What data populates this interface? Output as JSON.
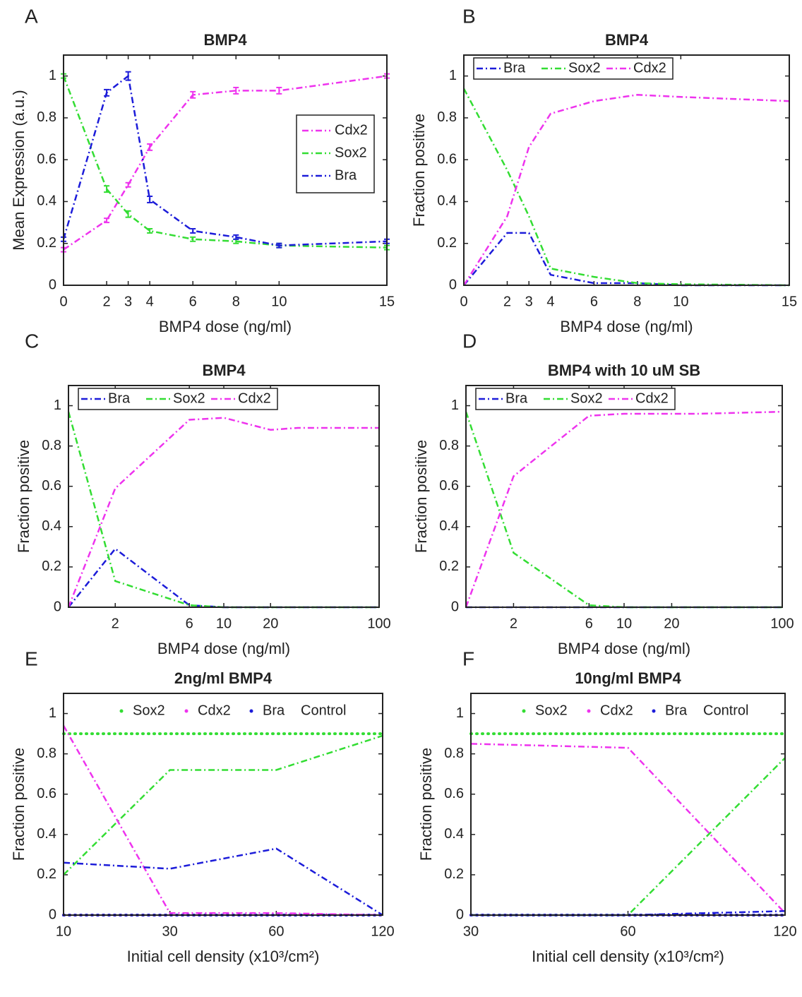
{
  "chart_data": [
    {
      "type": "line",
      "panel": "A",
      "title": "BMP4",
      "xlabel": "BMP4 dose (ng/ml)",
      "ylabel": "Mean Expression (a.u.)",
      "x": [
        0,
        2,
        3,
        4,
        6,
        8,
        10,
        15
      ],
      "xlim": [
        0,
        15
      ],
      "xticks": [
        0,
        2,
        3,
        4,
        6,
        8,
        10,
        15
      ],
      "ylim": [
        0,
        1.1
      ],
      "yticks": [
        0,
        0.2,
        0.4,
        0.6,
        0.8,
        1
      ],
      "legend": "northeast",
      "series": [
        {
          "name": "Cdx2",
          "color": "#ee33ee",
          "values": [
            0.17,
            0.31,
            0.48,
            0.66,
            0.91,
            0.93,
            0.93,
            1.0
          ],
          "errors": [
            0.01,
            0.01,
            0.01,
            0.015,
            0.015,
            0.015,
            0.015,
            0.01
          ]
        },
        {
          "name": "Sox2",
          "color": "#33dd33",
          "values": [
            1.0,
            0.46,
            0.34,
            0.26,
            0.22,
            0.21,
            0.19,
            0.18
          ],
          "errors": [
            0.01,
            0.015,
            0.015,
            0.01,
            0.01,
            0.01,
            0.01,
            0.01
          ]
        },
        {
          "name": "Bra",
          "color": "#1c1cd9",
          "values": [
            0.22,
            0.92,
            1.0,
            0.41,
            0.26,
            0.23,
            0.19,
            0.21
          ],
          "errors": [
            0.01,
            0.015,
            0.02,
            0.015,
            0.01,
            0.01,
            0.01,
            0.01
          ]
        }
      ]
    },
    {
      "type": "line",
      "panel": "B",
      "title": "BMP4",
      "xlabel": "BMP4 dose (ng/ml)",
      "ylabel": "Fraction positive",
      "x": [
        0,
        2,
        3,
        4,
        6,
        8,
        10,
        15
      ],
      "xlim": [
        0,
        15
      ],
      "xticks": [
        0,
        2,
        3,
        4,
        6,
        8,
        10,
        15
      ],
      "ylim": [
        0,
        1.1
      ],
      "yticks": [
        0,
        0.2,
        0.4,
        0.6,
        0.8,
        1
      ],
      "legend": "northwest",
      "series": [
        {
          "name": "Bra",
          "color": "#1c1cd9",
          "values": [
            0,
            0.25,
            0.25,
            0.05,
            0.01,
            0.01,
            0,
            0
          ]
        },
        {
          "name": "Sox2",
          "color": "#33dd33",
          "values": [
            0.94,
            0.55,
            0.33,
            0.08,
            0.04,
            0.01,
            0.005,
            0
          ]
        },
        {
          "name": "Cdx2",
          "color": "#ee33ee",
          "values": [
            0,
            0.33,
            0.66,
            0.82,
            0.88,
            0.91,
            0.9,
            0.88
          ]
        }
      ]
    },
    {
      "type": "line",
      "panel": "C",
      "title": "BMP4",
      "xlabel": "BMP4 dose (ng/ml)",
      "ylabel": "Fraction positive",
      "x": [
        1,
        2,
        6,
        10,
        20,
        30,
        100
      ],
      "xlim": [
        1,
        100
      ],
      "xscale": "log",
      "xticks": [
        2,
        6,
        10,
        20,
        100
      ],
      "ylim": [
        0,
        1.1
      ],
      "yticks": [
        0,
        0.2,
        0.4,
        0.6,
        0.8,
        1
      ],
      "legend": "northwest",
      "series": [
        {
          "name": "Bra",
          "color": "#1c1cd9",
          "values": [
            0,
            0.29,
            0.01,
            0,
            0,
            0,
            0
          ]
        },
        {
          "name": "Sox2",
          "color": "#33dd33",
          "values": [
            0.97,
            0.13,
            0.01,
            0,
            0,
            0,
            0
          ]
        },
        {
          "name": "Cdx2",
          "color": "#ee33ee",
          "values": [
            0,
            0.59,
            0.93,
            0.94,
            0.88,
            0.89,
            0.89
          ]
        }
      ]
    },
    {
      "type": "line",
      "panel": "D",
      "title": "BMP4 with 10 uM SB",
      "xlabel": "BMP4 dose (ng/ml)",
      "ylabel": "Fraction positive",
      "x": [
        1,
        2,
        6,
        10,
        20,
        30,
        100
      ],
      "xlim": [
        1,
        100
      ],
      "xscale": "log",
      "xticks": [
        2,
        6,
        10,
        20,
        100
      ],
      "ylim": [
        0,
        1.1
      ],
      "yticks": [
        0,
        0.2,
        0.4,
        0.6,
        0.8,
        1
      ],
      "legend": "northwest",
      "series": [
        {
          "name": "Bra",
          "color": "#1c1cd9",
          "values": [
            0,
            0,
            0,
            0,
            0,
            0,
            0
          ]
        },
        {
          "name": "Sox2",
          "color": "#33dd33",
          "values": [
            0.97,
            0.27,
            0.01,
            0,
            0,
            0,
            0
          ]
        },
        {
          "name": "Cdx2",
          "color": "#ee33ee",
          "values": [
            0,
            0.65,
            0.95,
            0.96,
            0.96,
            0.96,
            0.97
          ]
        }
      ]
    },
    {
      "type": "line",
      "panel": "E",
      "title": "2ng/ml  BMP4",
      "xlabel": "Initial cell density (x10³/cm²)",
      "ylabel": "Fraction positive",
      "categories": [
        "10",
        "30",
        "60",
        "120"
      ],
      "ylim": [
        0,
        1.1
      ],
      "yticks": [
        0,
        0.2,
        0.4,
        0.6,
        0.8,
        1
      ],
      "legend": "north",
      "control_label": "Control",
      "series": [
        {
          "name": "Sox2",
          "color": "#33dd33",
          "values": [
            0.2,
            0.72,
            0.72,
            0.89
          ],
          "control": 0.9
        },
        {
          "name": "Cdx2",
          "color": "#ee33ee",
          "values": [
            0.94,
            0.01,
            0.01,
            0
          ],
          "control": 0
        },
        {
          "name": "Bra",
          "color": "#1c1cd9",
          "values": [
            0.26,
            0.23,
            0.33,
            0
          ],
          "control": 0
        }
      ]
    },
    {
      "type": "line",
      "panel": "F",
      "title": "10ng/ml  BMP4",
      "xlabel": "Initial cell density (x10³/cm²)",
      "ylabel": "Fraction positive",
      "categories": [
        "30",
        "60",
        "120"
      ],
      "ylim": [
        0,
        1.1
      ],
      "yticks": [
        0,
        0.2,
        0.4,
        0.6,
        0.8,
        1
      ],
      "legend": "north",
      "control_label": "Control",
      "series": [
        {
          "name": "Sox2",
          "color": "#33dd33",
          "values": [
            0,
            0,
            0.78
          ],
          "control": 0.9
        },
        {
          "name": "Cdx2",
          "color": "#ee33ee",
          "values": [
            0.85,
            0.83,
            0.01
          ],
          "control": 0
        },
        {
          "name": "Bra",
          "color": "#1c1cd9",
          "values": [
            0,
            0,
            0.02
          ],
          "control": 0
        }
      ]
    }
  ]
}
